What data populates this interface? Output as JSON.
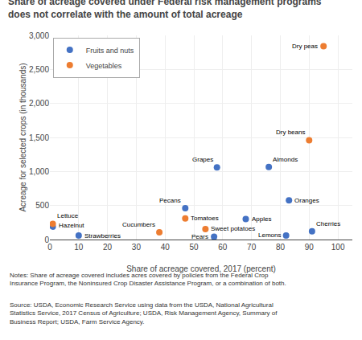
{
  "chart_data": {
    "type": "scatter",
    "title": "Share of acreage covered under Federal risk management programs\ndoes not correlate with the amount of total acreage",
    "xlabel": "Share of acreage covered, 2017 (percent)",
    "ylabel": "Acreage for selected crops (in thousands)",
    "xlim": [
      0,
      105
    ],
    "ylim": [
      0,
      3000
    ],
    "xticks": [
      0,
      10,
      20,
      30,
      40,
      50,
      60,
      70,
      80,
      90,
      100
    ],
    "yticks": [
      0,
      500,
      {
        "value": 1000,
        "label": "1,000"
      },
      {
        "value": 1500,
        "label": "1,500"
      },
      {
        "value": 2000,
        "label": "2,000"
      },
      {
        "value": 2500,
        "label": "2,500"
      },
      {
        "value": 3000,
        "label": "3,000"
      }
    ],
    "grid": true,
    "legend": "upper left",
    "series": [
      {
        "name": "Fruits and nuts",
        "color": "#4472c4",
        "x": [
          1,
          10,
          47,
          57,
          58,
          68,
          76,
          82,
          83,
          91
        ],
        "values": [
          190,
          60,
          460,
          40,
          1060,
          300,
          1065,
          60,
          575,
          120
        ],
        "labels": [
          "Hazelnut",
          "Strawberries",
          "Pecans",
          "Pears",
          "Grapes",
          "Apples",
          "Almonds",
          "Lemons",
          "Oranges",
          "Cherries"
        ]
      },
      {
        "name": "Vegetables",
        "color": "#ed7d31",
        "x": [
          1,
          38,
          47,
          54,
          90,
          95
        ],
        "values": [
          230,
          105,
          310,
          155,
          1460,
          2840
        ],
        "labels": [
          "Lettuce",
          "Cucumbers",
          "Tomatoes",
          "Sweet potatoes",
          "Dry beans",
          "Dry peas"
        ]
      }
    ],
    "annotations": [
      "Notes: Share of acreage covered includes acres covered by policies from the Federal Crop Insurance Program, the Noninsured Crop Disaster Assistance Program, or a combination of both.",
      "Source: USDA, Economic Research Service using data from the USDA, National Agricultural Statistics Service, 2017 Census of Agriculture; USDA, Risk Management Agency, Summary of Business Report; USDA, Farm Service Agency."
    ]
  }
}
